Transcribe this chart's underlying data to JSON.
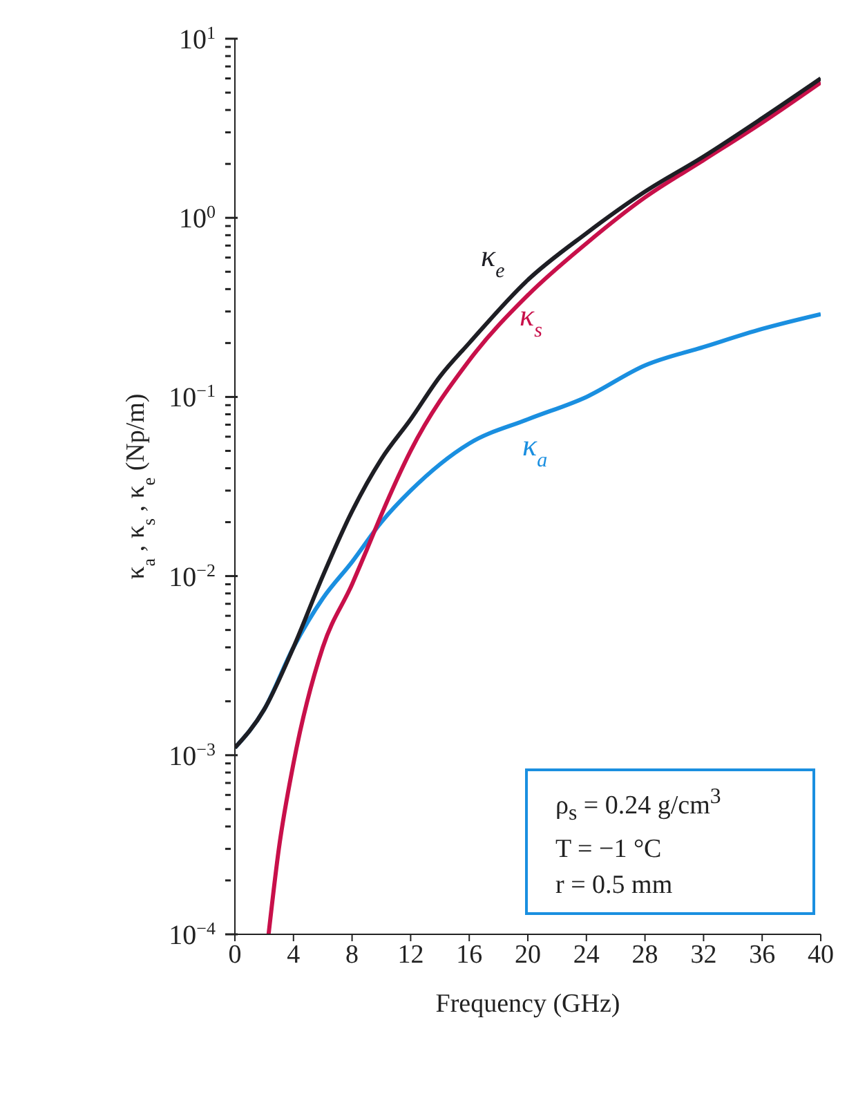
{
  "chart_data": {
    "type": "line",
    "xlabel": "Frequency (GHz)",
    "ylabel": "κ$_{a}$, κ$_{s}$, κ$_{e}$ (Np/m)",
    "log": "y",
    "xlim": [
      0,
      40
    ],
    "xticks": [
      0,
      4,
      8,
      12,
      16,
      20,
      24,
      28,
      32,
      36,
      40
    ],
    "ylim": [
      0.0001,
      10
    ],
    "yticks": [
      {
        "value": 0.0001,
        "label": "10$^{−4}$"
      },
      {
        "value": 0.0002,
        "label": null
      },
      {
        "value": 0.0003,
        "label": null
      },
      {
        "value": 0.0004,
        "label": null
      },
      {
        "value": 0.0005,
        "label": null
      },
      {
        "value": 0.0006,
        "label": null
      },
      {
        "value": 0.0007,
        "label": null
      },
      {
        "value": 0.0008,
        "label": null
      },
      {
        "value": 0.0009,
        "label": null
      },
      {
        "value": 0.001,
        "label": "10$^{−3}$"
      },
      {
        "value": 0.002,
        "label": null
      },
      {
        "value": 0.003,
        "label": null
      },
      {
        "value": 0.004,
        "label": null
      },
      {
        "value": 0.005,
        "label": null
      },
      {
        "value": 0.006,
        "label": null
      },
      {
        "value": 0.007,
        "label": null
      },
      {
        "value": 0.008,
        "label": null
      },
      {
        "value": 0.009,
        "label": null
      },
      {
        "value": 0.01,
        "label": "10$^{−2}$"
      },
      {
        "value": 0.02,
        "label": null
      },
      {
        "value": 0.03,
        "label": null
      },
      {
        "value": 0.04,
        "label": null
      },
      {
        "value": 0.05,
        "label": null
      },
      {
        "value": 0.06,
        "label": null
      },
      {
        "value": 0.07,
        "label": null
      },
      {
        "value": 0.08,
        "label": null
      },
      {
        "value": 0.09,
        "label": null
      },
      {
        "value": 0.1,
        "label": "10$^{−1}$"
      },
      {
        "value": 0.2,
        "label": null
      },
      {
        "value": 0.3,
        "label": null
      },
      {
        "value": 0.4,
        "label": null
      },
      {
        "value": 0.5,
        "label": null
      },
      {
        "value": 0.6,
        "label": null
      },
      {
        "value": 0.7,
        "label": null
      },
      {
        "value": 0.8,
        "label": null
      },
      {
        "value": 0.9,
        "label": null
      },
      {
        "value": 1,
        "label": "10$^{0}$"
      },
      {
        "value": 2,
        "label": null
      },
      {
        "value": 3,
        "label": null
      },
      {
        "value": 4,
        "label": null
      },
      {
        "value": 5,
        "label": null
      },
      {
        "value": 6,
        "label": null
      },
      {
        "value": 7,
        "label": null
      },
      {
        "value": 8,
        "label": null
      },
      {
        "value": 9,
        "label": null
      },
      {
        "value": 10,
        "label": "10$^{1}$"
      }
    ],
    "grid": false,
    "legend": false,
    "marker": "none",
    "line_style": "solid",
    "series": [
      {
        "name": "κ$_{e}$",
        "color": "#1e1e24",
        "x": [
          0,
          2,
          4,
          6,
          8,
          10,
          12,
          14,
          16,
          20,
          24,
          28,
          32,
          36,
          40
        ],
        "values": [
          0.0011,
          0.0018,
          0.004,
          0.01,
          0.023,
          0.045,
          0.075,
          0.13,
          0.2,
          0.45,
          0.82,
          1.4,
          2.2,
          3.6,
          6
        ]
      },
      {
        "name": "κ$_{s}$",
        "color": "#c8104a",
        "x": [
          2.3,
          3,
          4,
          6,
          8,
          9,
          10,
          12,
          16,
          20,
          24,
          28,
          32,
          36,
          40
        ],
        "values": [
          0.0001,
          0.0003,
          0.0009,
          0.004,
          0.009,
          0.014,
          0.022,
          0.05,
          0.16,
          0.37,
          0.72,
          1.3,
          2.1,
          3.4,
          5.7
        ]
      },
      {
        "name": "κ$_{a}$",
        "color": "#1a8fe0",
        "x": [
          0,
          2,
          4,
          6,
          8,
          10,
          12,
          16,
          20,
          24,
          28,
          32,
          36,
          40
        ],
        "values": [
          0.0011,
          0.0018,
          0.004,
          0.0075,
          0.012,
          0.02,
          0.03,
          0.055,
          0.075,
          0.1,
          0.15,
          0.19,
          0.24,
          0.29
        ]
      }
    ],
    "annotations": [
      "ρ$_{s}$ = 0.24 g/cm$^{3}$",
      "T = −1 °C",
      "r = 0.5 mm"
    ]
  }
}
